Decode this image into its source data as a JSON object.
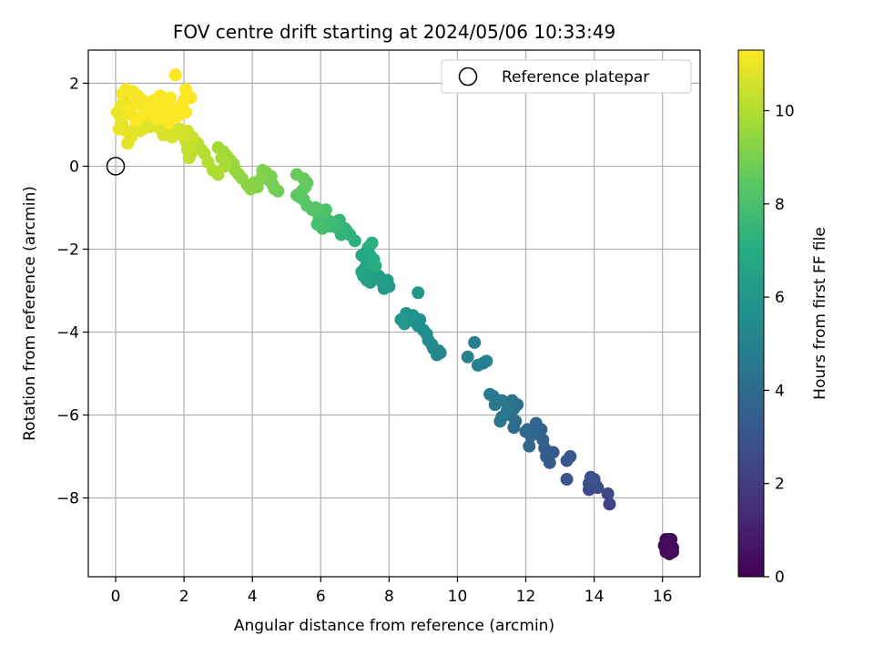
{
  "chart_data": {
    "type": "scatter",
    "title": "FOV centre drift starting at 2024/05/06 10:33:49",
    "xlabel": "Angular distance from reference (arcmin)",
    "ylabel": "Rotation from reference (arcmin)",
    "xlim": [
      -0.8,
      17.1
    ],
    "ylim": [
      -9.9,
      2.8
    ],
    "xticks": [
      0,
      2,
      4,
      6,
      8,
      10,
      12,
      14,
      16
    ],
    "yticks": [
      2,
      0,
      -2,
      -4,
      -6,
      -8
    ],
    "xtick_labels": [
      "0",
      "2",
      "4",
      "6",
      "8",
      "10",
      "12",
      "14",
      "16"
    ],
    "ytick_labels": [
      "2",
      "0",
      "−2",
      "−4",
      "−6",
      "−8"
    ],
    "grid": true,
    "legend": {
      "placement": "top-right",
      "entries": [
        "Reference platepar"
      ]
    },
    "reference_point": {
      "x": 0,
      "y": 0
    },
    "colorbar": {
      "label": "Hours from first FF file",
      "colormap": "viridis",
      "range": [
        0,
        11.3
      ],
      "ticks": [
        0,
        2,
        4,
        6,
        8,
        10
      ],
      "tick_labels": [
        "0",
        "2",
        "4",
        "6",
        "8",
        "10"
      ]
    },
    "series": [
      {
        "points": [
          [
            16.1,
            -9.0,
            0.05
          ],
          [
            16.2,
            -9.1,
            0.08
          ],
          [
            16.15,
            -9.25,
            0.1
          ],
          [
            16.3,
            -9.2,
            0.12
          ],
          [
            16.1,
            -9.3,
            0.15
          ],
          [
            16.25,
            -9.0,
            0.18
          ],
          [
            16.05,
            -9.15,
            0.2
          ],
          [
            16.2,
            -9.35,
            0.22
          ],
          [
            16.3,
            -9.3,
            0.25
          ],
          [
            16.15,
            -9.1,
            0.28
          ],
          [
            16.2,
            -9.0,
            0.3
          ],
          [
            16.25,
            -9.25,
            0.33
          ],
          [
            14.45,
            -8.15,
            2.3
          ],
          [
            14.4,
            -7.9,
            2.4
          ],
          [
            14.1,
            -7.75,
            2.5
          ],
          [
            13.95,
            -7.6,
            2.55
          ],
          [
            13.85,
            -7.8,
            2.6
          ],
          [
            13.9,
            -7.5,
            2.7
          ],
          [
            14.05,
            -7.7,
            2.75
          ],
          [
            13.85,
            -7.65,
            2.8
          ],
          [
            14.0,
            -7.55,
            2.85
          ],
          [
            13.2,
            -7.55,
            3.0
          ],
          [
            13.3,
            -7.0,
            3.05
          ],
          [
            13.2,
            -7.1,
            3.1
          ],
          [
            12.8,
            -6.9,
            3.2
          ],
          [
            12.7,
            -7.15,
            3.3
          ],
          [
            12.6,
            -7.0,
            3.35
          ],
          [
            12.55,
            -6.8,
            3.4
          ],
          [
            12.5,
            -6.6,
            3.5
          ],
          [
            12.35,
            -6.45,
            3.6
          ],
          [
            12.45,
            -6.35,
            3.65
          ],
          [
            12.3,
            -6.2,
            3.7
          ],
          [
            12.1,
            -6.75,
            3.75
          ],
          [
            12.15,
            -6.5,
            3.8
          ],
          [
            12.0,
            -6.4,
            3.85
          ],
          [
            12.05,
            -6.35,
            3.9
          ],
          [
            11.65,
            -6.3,
            4.0
          ],
          [
            11.7,
            -6.15,
            4.05
          ],
          [
            11.55,
            -6.0,
            4.1
          ],
          [
            11.65,
            -5.85,
            4.15
          ],
          [
            11.75,
            -5.75,
            4.2
          ],
          [
            11.6,
            -5.65,
            4.3
          ],
          [
            11.5,
            -5.85,
            4.35
          ],
          [
            11.3,
            -6.05,
            4.4
          ],
          [
            11.25,
            -6.15,
            4.45
          ],
          [
            11.45,
            -5.9,
            4.5
          ],
          [
            11.3,
            -5.65,
            4.55
          ],
          [
            11.1,
            -5.75,
            4.6
          ],
          [
            11.05,
            -5.55,
            4.65
          ],
          [
            10.95,
            -5.5,
            4.7
          ],
          [
            10.6,
            -4.8,
            4.8
          ],
          [
            10.5,
            -4.25,
            4.85
          ],
          [
            10.75,
            -4.75,
            4.9
          ],
          [
            10.3,
            -4.6,
            4.95
          ],
          [
            10.85,
            -4.7,
            5.0
          ],
          [
            9.5,
            -4.5,
            5.2
          ],
          [
            9.4,
            -4.55,
            5.25
          ],
          [
            9.45,
            -4.45,
            5.3
          ],
          [
            9.3,
            -4.4,
            5.35
          ],
          [
            9.25,
            -4.3,
            5.4
          ],
          [
            9.15,
            -4.2,
            5.45
          ],
          [
            9.1,
            -4.05,
            5.5
          ],
          [
            9.0,
            -3.95,
            5.55
          ],
          [
            8.9,
            -3.7,
            5.6
          ],
          [
            8.75,
            -3.75,
            5.65
          ],
          [
            8.85,
            -3.85,
            5.7
          ],
          [
            8.7,
            -3.6,
            5.75
          ],
          [
            8.6,
            -3.65,
            5.8
          ],
          [
            8.5,
            -3.55,
            5.85
          ],
          [
            8.45,
            -3.8,
            5.9
          ],
          [
            8.35,
            -3.7,
            5.95
          ],
          [
            8.85,
            -3.05,
            6.0
          ],
          [
            8.0,
            -2.9,
            6.1
          ],
          [
            7.85,
            -2.95,
            6.15
          ],
          [
            7.95,
            -2.75,
            6.2
          ],
          [
            7.8,
            -2.8,
            6.25
          ],
          [
            7.7,
            -2.65,
            6.3
          ],
          [
            7.55,
            -2.7,
            6.35
          ],
          [
            7.45,
            -2.8,
            6.4
          ],
          [
            7.5,
            -2.6,
            6.45
          ],
          [
            7.35,
            -2.75,
            6.5
          ],
          [
            7.25,
            -2.65,
            6.55
          ],
          [
            7.2,
            -2.55,
            6.6
          ],
          [
            7.3,
            -2.45,
            6.65
          ],
          [
            7.45,
            -2.35,
            6.7
          ],
          [
            7.35,
            -2.3,
            6.75
          ],
          [
            7.2,
            -2.15,
            6.8
          ],
          [
            7.35,
            -2.05,
            6.85
          ],
          [
            7.4,
            -1.95,
            6.9
          ],
          [
            7.45,
            -2.15,
            6.95
          ],
          [
            7.55,
            -2.25,
            7.0
          ],
          [
            7.55,
            -2.35,
            7.05
          ],
          [
            7.6,
            -2.4,
            7.1
          ],
          [
            7.5,
            -1.85,
            7.15
          ],
          [
            7.0,
            -1.8,
            7.2
          ],
          [
            6.85,
            -1.65,
            7.25
          ],
          [
            6.75,
            -1.55,
            7.3
          ],
          [
            6.7,
            -1.5,
            7.35
          ],
          [
            6.6,
            -1.65,
            7.4
          ],
          [
            6.5,
            -1.5,
            7.45
          ],
          [
            6.55,
            -1.3,
            7.5
          ],
          [
            6.5,
            -1.35,
            7.55
          ],
          [
            6.4,
            -1.45,
            7.6
          ],
          [
            6.35,
            -1.35,
            7.65
          ],
          [
            6.3,
            -1.45,
            7.7
          ],
          [
            6.2,
            -1.3,
            7.75
          ],
          [
            6.15,
            -1.45,
            7.8
          ],
          [
            6.05,
            -1.5,
            7.85
          ],
          [
            5.9,
            -1.4,
            7.9
          ],
          [
            5.95,
            -1.25,
            7.95
          ],
          [
            6.05,
            -1.15,
            8.0
          ],
          [
            6.15,
            -1.05,
            8.05
          ],
          [
            6.0,
            -1.1,
            8.1
          ],
          [
            5.95,
            -1.05,
            8.15
          ],
          [
            5.85,
            -1.0,
            8.2
          ],
          [
            5.75,
            -1.05,
            8.25
          ],
          [
            5.6,
            -0.95,
            8.3
          ],
          [
            5.5,
            -0.8,
            8.35
          ],
          [
            5.4,
            -0.75,
            8.4
          ],
          [
            5.3,
            -0.7,
            8.45
          ],
          [
            5.45,
            -0.6,
            8.5
          ],
          [
            5.55,
            -0.5,
            8.55
          ],
          [
            5.6,
            -0.4,
            8.6
          ],
          [
            5.5,
            -0.3,
            8.65
          ],
          [
            5.3,
            -0.2,
            8.7
          ],
          [
            4.75,
            -0.6,
            8.8
          ],
          [
            4.65,
            -0.55,
            8.85
          ],
          [
            4.6,
            -0.45,
            8.9
          ],
          [
            4.5,
            -0.35,
            8.95
          ],
          [
            4.55,
            -0.25,
            9.0
          ],
          [
            4.4,
            -0.15,
            9.05
          ],
          [
            4.3,
            -0.1,
            9.1
          ],
          [
            4.25,
            -0.3,
            9.15
          ],
          [
            4.15,
            -0.5,
            9.2
          ],
          [
            4.05,
            -0.4,
            9.25
          ],
          [
            3.95,
            -0.55,
            9.3
          ],
          [
            3.85,
            -0.45,
            9.35
          ],
          [
            3.7,
            -0.3,
            9.4
          ],
          [
            3.6,
            -0.2,
            9.45
          ],
          [
            3.5,
            -0.1,
            9.5
          ],
          [
            3.45,
            0.05,
            9.55
          ],
          [
            3.35,
            0.15,
            9.6
          ],
          [
            3.25,
            0.25,
            9.65
          ],
          [
            3.15,
            0.35,
            9.7
          ],
          [
            3.0,
            0.45,
            9.75
          ],
          [
            3.1,
            0.2,
            9.8
          ],
          [
            3.2,
            0.0,
            9.85
          ],
          [
            3.0,
            -0.2,
            9.9
          ],
          [
            2.85,
            -0.1,
            9.95
          ],
          [
            2.7,
            0.1,
            10.0
          ],
          [
            2.6,
            0.3,
            10.05
          ],
          [
            2.5,
            0.4,
            10.1
          ],
          [
            2.4,
            0.55,
            10.15
          ],
          [
            2.3,
            0.5,
            10.2
          ],
          [
            2.2,
            0.3,
            10.25
          ],
          [
            2.15,
            0.2,
            10.3
          ],
          [
            2.1,
            0.4,
            10.35
          ],
          [
            2.05,
            0.6,
            10.4
          ],
          [
            2.25,
            0.7,
            10.45
          ],
          [
            2.1,
            0.85,
            10.5
          ],
          [
            1.95,
            0.75,
            10.55
          ],
          [
            1.85,
            0.9,
            10.6
          ],
          [
            1.75,
            0.8,
            10.62
          ],
          [
            1.65,
            0.7,
            10.64
          ],
          [
            1.55,
            0.95,
            10.66
          ],
          [
            1.5,
            0.85,
            10.68
          ],
          [
            1.4,
            0.75,
            10.7
          ],
          [
            1.3,
            0.9,
            10.72
          ],
          [
            1.1,
            1.05,
            10.74
          ],
          [
            1.0,
            0.95,
            10.76
          ],
          [
            0.9,
            1.1,
            10.78
          ],
          [
            0.8,
            0.9,
            10.8
          ],
          [
            0.7,
            0.85,
            10.82
          ],
          [
            0.6,
            0.95,
            10.84
          ],
          [
            0.5,
            0.8,
            10.86
          ],
          [
            0.45,
            0.7,
            10.88
          ],
          [
            0.35,
            0.55,
            10.9
          ],
          [
            0.3,
            0.85,
            10.92
          ],
          [
            0.2,
            1.0,
            10.94
          ],
          [
            0.1,
            0.9,
            10.96
          ],
          [
            0.15,
            1.15,
            10.98
          ],
          [
            0.05,
            1.3,
            11.0
          ],
          [
            0.15,
            1.45,
            11.02
          ],
          [
            0.25,
            1.6,
            11.04
          ],
          [
            0.35,
            1.4,
            11.06
          ],
          [
            0.45,
            1.25,
            11.08
          ],
          [
            0.55,
            1.5,
            11.1
          ],
          [
            0.65,
            1.7,
            11.12
          ],
          [
            0.2,
            1.75,
            11.14
          ],
          [
            0.3,
            1.85,
            11.16
          ],
          [
            0.5,
            1.8,
            11.18
          ],
          [
            0.75,
            1.6,
            11.2
          ],
          [
            0.85,
            1.4,
            11.22
          ],
          [
            0.95,
            1.25,
            11.24
          ],
          [
            1.05,
            1.45,
            11.26
          ],
          [
            1.15,
            1.6,
            11.27
          ],
          [
            1.25,
            1.35,
            11.28
          ],
          [
            1.35,
            1.2,
            11.29
          ],
          [
            1.45,
            1.5,
            11.3
          ],
          [
            1.6,
            1.65,
            11.3
          ],
          [
            1.7,
            1.35,
            11.3
          ],
          [
            1.8,
            1.2,
            11.3
          ],
          [
            1.9,
            1.45,
            11.3
          ],
          [
            2.0,
            1.6,
            11.3
          ],
          [
            2.05,
            1.85,
            11.3
          ],
          [
            2.1,
            1.7,
            11.3
          ],
          [
            1.75,
            2.2,
            11.3
          ],
          [
            1.95,
            1.4,
            11.3
          ],
          [
            1.65,
            1.25,
            11.3
          ],
          [
            1.55,
            1.05,
            11.3
          ],
          [
            1.2,
            1.15,
            11.28
          ],
          [
            1.0,
            1.55,
            11.27
          ],
          [
            0.8,
            1.25,
            11.26
          ],
          [
            0.6,
            1.1,
            11.25
          ],
          [
            0.4,
            1.35,
            11.24
          ],
          [
            1.3,
            1.7,
            11.25
          ],
          [
            1.45,
            1.3,
            11.26
          ],
          [
            2.2,
            1.65,
            11.28
          ],
          [
            2.05,
            1.3,
            11.29
          ]
        ]
      }
    ]
  }
}
